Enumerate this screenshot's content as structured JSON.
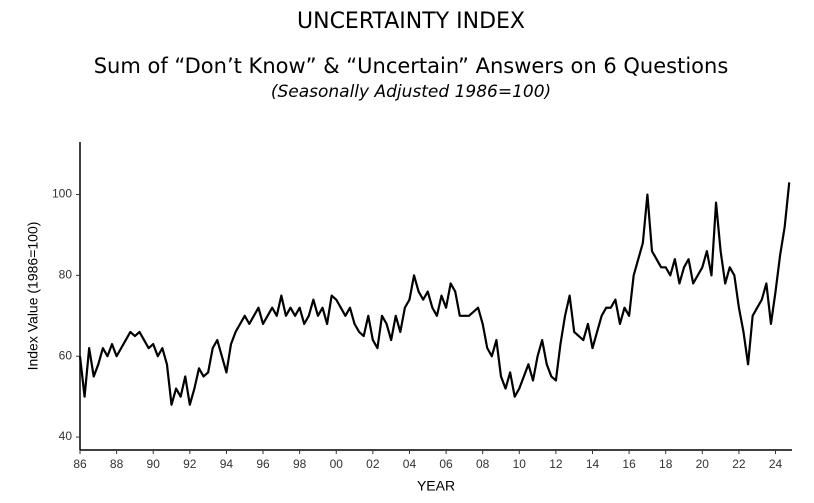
{
  "chart_data": {
    "type": "line",
    "title": "UNCERTAINTY INDEX",
    "subtitle": "Sum of “Don’t Know” & “Uncertain” Answers on 6 Questions",
    "note": "(Seasonally Adjusted 1986=100)",
    "xlabel": "YEAR",
    "ylabel": "Index Value (1986=100)",
    "xlim": [
      1986,
      2024.9
    ],
    "ylim": [
      36.8,
      113
    ],
    "yticks": [
      40,
      60,
      80,
      100
    ],
    "xticks": [
      {
        "value": 1986,
        "label": "86"
      },
      {
        "value": 1988,
        "label": "88"
      },
      {
        "value": 1990,
        "label": "90"
      },
      {
        "value": 1992,
        "label": "92"
      },
      {
        "value": 1994,
        "label": "94"
      },
      {
        "value": 1996,
        "label": "96"
      },
      {
        "value": 1998,
        "label": "98"
      },
      {
        "value": 2000,
        "label": "00"
      },
      {
        "value": 2002,
        "label": "02"
      },
      {
        "value": 2004,
        "label": "04"
      },
      {
        "value": 2006,
        "label": "06"
      },
      {
        "value": 2008,
        "label": "08"
      },
      {
        "value": 2010,
        "label": "10"
      },
      {
        "value": 2012,
        "label": "12"
      },
      {
        "value": 2014,
        "label": "14"
      },
      {
        "value": 2016,
        "label": "16"
      },
      {
        "value": 2018,
        "label": "18"
      },
      {
        "value": 2020,
        "label": "20"
      },
      {
        "value": 2022,
        "label": "22"
      },
      {
        "value": 2024,
        "label": "24"
      }
    ],
    "grid": false,
    "x": [
      1986,
      1986.25,
      1986.5,
      1986.75,
      1987,
      1987.25,
      1987.5,
      1987.75,
      1988,
      1988.25,
      1988.5,
      1988.75,
      1989,
      1989.25,
      1989.5,
      1989.75,
      1990,
      1990.25,
      1990.5,
      1990.75,
      1991,
      1991.25,
      1991.5,
      1991.75,
      1992,
      1992.25,
      1992.5,
      1992.75,
      1993,
      1993.25,
      1993.5,
      1993.75,
      1994,
      1994.25,
      1994.5,
      1994.75,
      1995,
      1995.25,
      1995.5,
      1995.75,
      1996,
      1996.25,
      1996.5,
      1996.75,
      1997,
      1997.25,
      1997.5,
      1997.75,
      1998,
      1998.25,
      1998.5,
      1998.75,
      1999,
      1999.25,
      1999.5,
      1999.75,
      2000,
      2000.25,
      2000.5,
      2000.75,
      2001,
      2001.25,
      2001.5,
      2001.75,
      2002,
      2002.25,
      2002.5,
      2002.75,
      2003,
      2003.25,
      2003.5,
      2003.75,
      2004,
      2004.25,
      2004.5,
      2004.75,
      2005,
      2005.25,
      2005.5,
      2005.75,
      2006,
      2006.25,
      2006.5,
      2006.75,
      2007,
      2007.25,
      2007.5,
      2007.75,
      2008,
      2008.25,
      2008.5,
      2008.75,
      2009,
      2009.25,
      2009.5,
      2009.75,
      2010,
      2010.25,
      2010.5,
      2010.75,
      2011,
      2011.25,
      2011.5,
      2011.75,
      2012,
      2012.25,
      2012.5,
      2012.75,
      2013,
      2013.25,
      2013.5,
      2013.75,
      2014,
      2014.25,
      2014.5,
      2014.75,
      2015,
      2015.25,
      2015.5,
      2015.75,
      2016,
      2016.25,
      2016.5,
      2016.75,
      2017,
      2017.25,
      2017.5,
      2017.75,
      2018,
      2018.25,
      2018.5,
      2018.75,
      2019,
      2019.25,
      2019.5,
      2019.75,
      2020,
      2020.25,
      2020.5,
      2020.75,
      2021,
      2021.25,
      2021.5,
      2021.75,
      2022,
      2022.25,
      2022.5,
      2022.75,
      2023,
      2023.25,
      2023.5,
      2023.75,
      2024,
      2024.25,
      2024.5,
      2024.75
    ],
    "series": [
      {
        "color": "#000000",
        "values": [
          60,
          50,
          62,
          55,
          58,
          62,
          60,
          63,
          60,
          62,
          64,
          66,
          65,
          66,
          64,
          62,
          63,
          60,
          62,
          58,
          48,
          52,
          50,
          55,
          48,
          52,
          57,
          55,
          56,
          62,
          64,
          60,
          56,
          63,
          66,
          68,
          70,
          68,
          70,
          72,
          68,
          70,
          72,
          70,
          75,
          70,
          72,
          70,
          72,
          68,
          70,
          74,
          70,
          72,
          68,
          75,
          74,
          72,
          70,
          72,
          68,
          66,
          65,
          70,
          64,
          62,
          70,
          68,
          64,
          70,
          66,
          72,
          74,
          80,
          76,
          74,
          76,
          72,
          70,
          75,
          72,
          78,
          76,
          70,
          70,
          70,
          71,
          72,
          68,
          62,
          60,
          64,
          55,
          52,
          56,
          50,
          52,
          55,
          58,
          54,
          60,
          64,
          58,
          55,
          54,
          63,
          70,
          75,
          66,
          65,
          64,
          68,
          62,
          66,
          70,
          72,
          72,
          74,
          68,
          72,
          70,
          80,
          84,
          88,
          100,
          86,
          84,
          82,
          82,
          80,
          84,
          78,
          82,
          84,
          78,
          80,
          82,
          86,
          80,
          98,
          86,
          78,
          82,
          80,
          72,
          66,
          58,
          70,
          72,
          74,
          78,
          68,
          76,
          85,
          92,
          103
        ]
      }
    ]
  }
}
